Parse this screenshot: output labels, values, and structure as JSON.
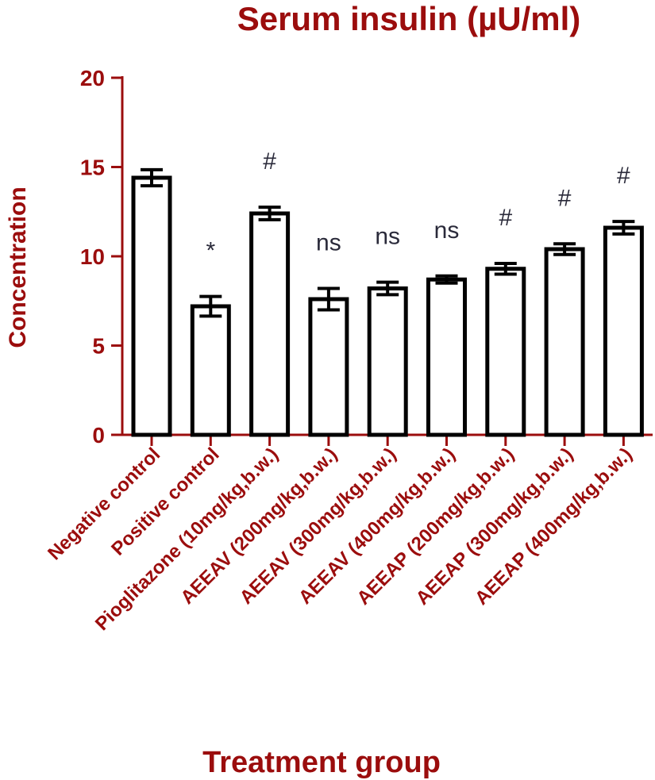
{
  "chart_data": {
    "type": "bar",
    "title": "Serum insulin (µU/ml)",
    "xlabel": "Treatment group",
    "ylabel": "Concentration",
    "ylim": [
      0,
      20
    ],
    "yticks": [
      0,
      5,
      10,
      15,
      20
    ],
    "grid": false,
    "categories": [
      "Negative control",
      "Positive control",
      "Pioglitazone (10mg/kg,b.w.)",
      "AEEAV (200mg/kg,b.w.)",
      "AEEAV (300mg/kg,b.w.)",
      "AEEAV (400mg/kg,b.w.)",
      "AEEAP (200mg/kg,b.w.)",
      "AEEAP (300mg/kg,b.w.)",
      "AEEAP (400mg/kg,b.w.)"
    ],
    "values": [
      14.4,
      7.2,
      12.4,
      7.6,
      8.2,
      8.7,
      9.3,
      10.4,
      11.6
    ],
    "errors": [
      0.45,
      0.55,
      0.35,
      0.6,
      0.35,
      0.2,
      0.3,
      0.3,
      0.35
    ],
    "significance": [
      "",
      "*",
      "#",
      "ns",
      "ns",
      "ns",
      "#",
      "#",
      "#"
    ],
    "colors": {
      "accent": "#9b0d0d",
      "bar_stroke": "#000000",
      "bar_fill": "#ffffff",
      "sig_text": "#2a2a3a"
    }
  }
}
